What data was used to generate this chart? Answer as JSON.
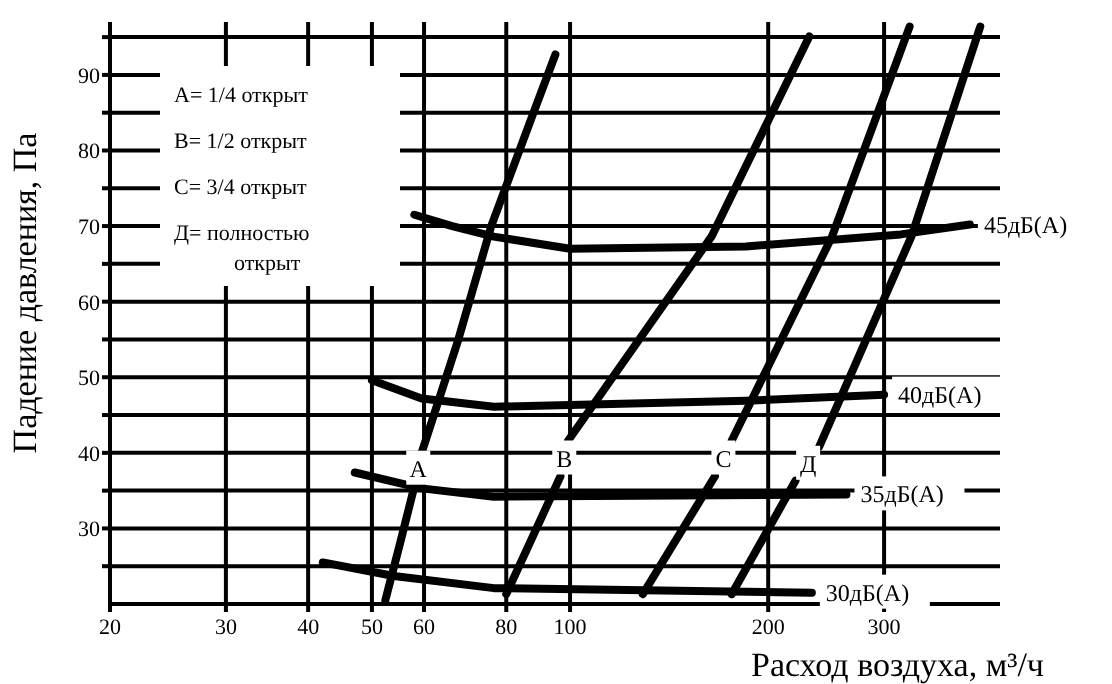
{
  "chart_data": {
    "type": "line",
    "xlabel": "Расход воздуха, м³/ч",
    "ylabel": "Падение давления, Па",
    "xlim": [
      20,
      450
    ],
    "xticks": [
      20,
      30,
      40,
      50,
      60,
      80,
      100,
      200,
      300
    ],
    "ylim": [
      20,
      97
    ],
    "yticks": [
      {
        "value": 25,
        "label": null
      },
      30,
      {
        "value": 35,
        "label": null
      },
      40,
      {
        "value": 45,
        "label": null
      },
      50,
      {
        "value": 55,
        "label": null
      },
      60,
      {
        "value": 65,
        "label": null
      },
      70,
      {
        "value": 75,
        "label": null
      },
      80,
      {
        "value": 85,
        "label": null
      },
      90,
      {
        "value": 95,
        "label": null
      }
    ],
    "grid": true,
    "marker": "none",
    "line_style": "solid",
    "log": "x",
    "series": [
      {
        "name": "45дБ(А)",
        "color": "#000000",
        "x": [
          58,
          66.2,
          76.6,
          100,
          185,
          318,
          405
        ],
        "values": [
          71.5,
          70,
          68.6,
          67,
          67.3,
          68.9,
          70.2
        ]
      },
      {
        "name": "40дБ(А)",
        "color": "#000000",
        "x": [
          50,
          59.5,
          76.6,
          185,
          300
        ],
        "values": [
          49.6,
          47.2,
          46.1,
          46.9,
          47.7
        ]
      },
      {
        "name": "35дБ(А)",
        "color": "#000000",
        "x": [
          47.1,
          59.5,
          76.6,
          263
        ],
        "values": [
          37.4,
          35.3,
          34.2,
          34.5
        ]
      },
      {
        "name": "30дБ(А)",
        "color": "#000000",
        "x": [
          42.1,
          54,
          76.6,
          233
        ],
        "values": [
          25.5,
          23.7,
          22.1,
          21.5
        ]
      },
      {
        "name": "A",
        "color": "#000000",
        "x": [
          52.4,
          55.2,
          58.1,
          58.8,
          59.5,
          67.6,
          75.9,
          88,
          95
        ],
        "values": [
          20.5,
          28.1,
          35.8,
          null,
          40,
          54.9,
          70,
          85,
          92.7
        ]
      },
      {
        "name": "B",
        "color": "#000000",
        "x": [
          80,
          96.7,
          98,
          99.3,
          164,
          231
        ],
        "values": [
          21.3,
          36.9,
          null,
          41.6,
          68.6,
          95.1
        ]
      },
      {
        "name": "C",
        "color": "#000000",
        "x": [
          129,
          166,
          171,
          176,
          250,
          328
        ],
        "values": [
          21.3,
          36.9,
          null,
          41.6,
          68.6,
          96.4
        ]
      },
      {
        "name": "Д",
        "color": "#000000",
        "x": [
          176,
          220,
          230,
          239,
          330,
          420
        ],
        "values": [
          21.3,
          36.3,
          null,
          40.8,
          68.6,
          96.4
        ]
      }
    ],
    "annotations": [
      "A= 1/4 открыт",
      "B= 1/2 открыт",
      "C= 3/4 открыт",
      "Д= полностью\nоткрыт"
    ]
  }
}
